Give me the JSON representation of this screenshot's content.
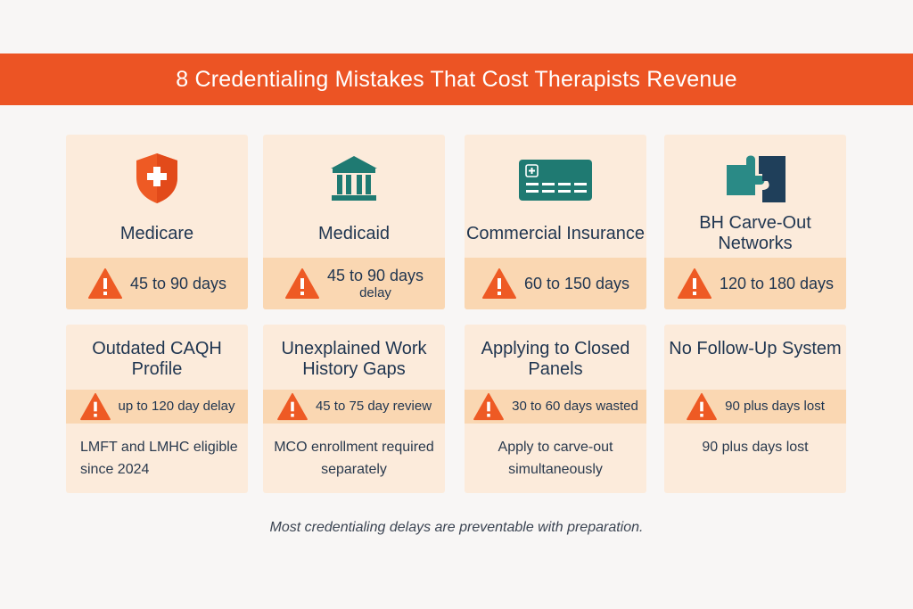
{
  "header": {
    "title": "8 Credentialing Mistakes That Cost Therapists Revenue"
  },
  "colors": {
    "banner": "#ec5424",
    "card": "#fcebdb",
    "band": "#fad7b2",
    "warning": "#ee5a24",
    "teal": "#1f7a72"
  },
  "payers": [
    {
      "icon": "shield-cross-icon",
      "title": "Medicare",
      "delay": "45 to 90 days",
      "delay_sub": ""
    },
    {
      "icon": "government-building-icon",
      "title": "Medicaid",
      "delay": "45 to 90 days",
      "delay_sub": "delay"
    },
    {
      "icon": "credit-card-icon",
      "title": "Commercial Insurance",
      "delay": "60 to 150 days",
      "delay_sub": ""
    },
    {
      "icon": "puzzle-piece-icon",
      "title": "BH Carve-Out Networks",
      "delay": "120 to 180 days",
      "delay_sub": ""
    }
  ],
  "mistakes": [
    {
      "title": "Outdated CAQH Profile",
      "impact": "up to 120 day delay",
      "note": "LMFT and LMHC eligible since 2024"
    },
    {
      "title": "Unexplained Work History Gaps",
      "impact": "45 to 75 day review",
      "note": "MCO enrollment required separately"
    },
    {
      "title": "Applying to Closed Panels",
      "impact": "30 to 60 days wasted",
      "note": "Apply to carve-out simultaneously"
    },
    {
      "title": "No Follow-Up System",
      "impact": "90 plus days lost",
      "note": "90 plus days lost"
    }
  ],
  "footer": {
    "text": "Most credentialing delays are preventable with preparation."
  }
}
